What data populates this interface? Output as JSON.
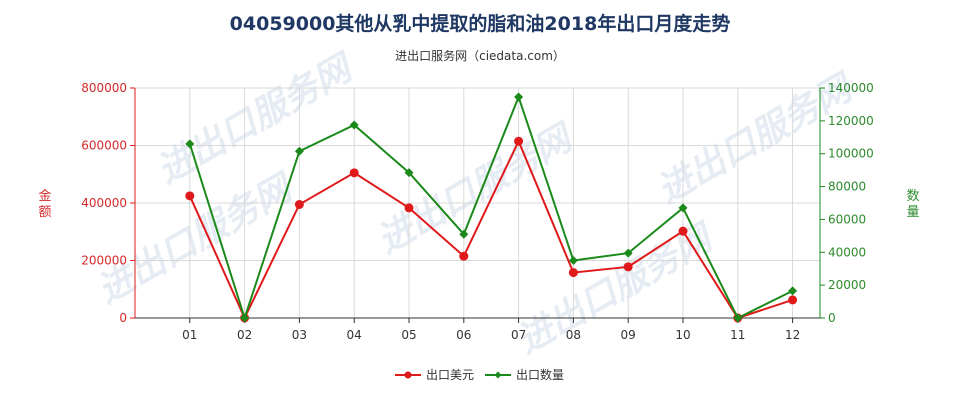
{
  "chart_data": {
    "type": "line",
    "title": "04059000其他从乳中提取的脂和油2018年出口月度走势",
    "subtitle": "进出口服务网（ciedata.com）",
    "categories": [
      "01",
      "02",
      "03",
      "04",
      "05",
      "06",
      "07",
      "08",
      "09",
      "10",
      "11",
      "12"
    ],
    "y_left": {
      "label": "金额",
      "range": [
        0,
        800000
      ],
      "ticks": [
        "0",
        "200000",
        "400000",
        "600000",
        "800000"
      ],
      "tick_values": [
        0,
        200000,
        400000,
        600000,
        800000
      ],
      "color": "#e0191a"
    },
    "y_right": {
      "label": "数量",
      "range": [
        0,
        140000
      ],
      "ticks": [
        "0",
        "20000",
        "40000",
        "60000",
        "80000",
        "100000",
        "120000",
        "140000"
      ],
      "tick_values": [
        0,
        20000,
        40000,
        60000,
        80000,
        100000,
        120000,
        140000
      ],
      "color": "#1b8a1b"
    },
    "series": [
      {
        "name": "出口美元",
        "axis": "left",
        "color": "#e0191a",
        "values": [
          425000,
          0,
          395000,
          505000,
          383000,
          215000,
          615000,
          158000,
          178000,
          302000,
          0,
          63000
        ]
      },
      {
        "name": "出口数量",
        "axis": "right",
        "color": "#1b8a1b",
        "values": [
          106000,
          0,
          101500,
          117500,
          88500,
          51000,
          134500,
          35000,
          39500,
          67000,
          0,
          16500
        ]
      }
    ],
    "grid": true,
    "legend": "bottom-center"
  },
  "watermark": "进出口服务网"
}
